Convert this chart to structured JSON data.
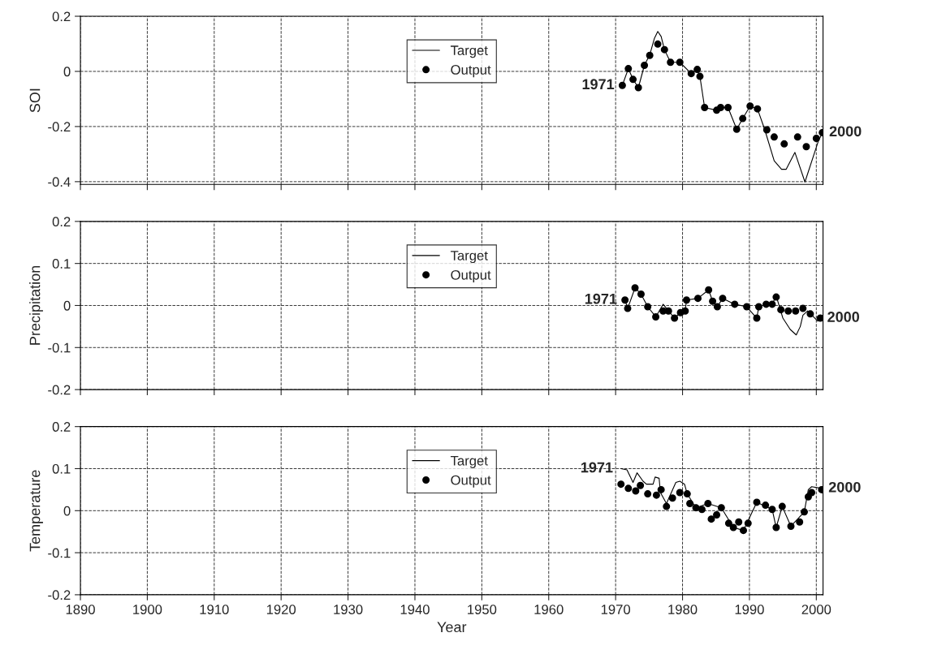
{
  "chart_data": [
    {
      "type": "line",
      "ylabel": "SOI",
      "xlim": [
        1890,
        2001
      ],
      "ylim": [
        -0.41,
        0.2
      ],
      "xticks": [
        1890,
        1900,
        1910,
        1920,
        1930,
        1940,
        1950,
        1960,
        1970,
        1980,
        1990,
        2000
      ],
      "yticks": [
        0.2,
        0,
        -0.2,
        -0.4
      ],
      "tick_labels": "y",
      "grid": true,
      "legend": "top",
      "annotations": [
        {
          "text": "1971",
          "x": 1971.0,
          "y": -0.051
        },
        {
          "text": "2000",
          "x": 2000.9,
          "y": -0.222
        }
      ],
      "series": [
        {
          "name": "Target",
          "color": "#000000",
          "line_style": "solid",
          "x": [
            1971.0,
            1971.9,
            1972.6,
            1973.4,
            1974.3,
            1975.1,
            1975.8,
            1976.3,
            1976.8,
            1977.3,
            1978.2,
            1979.6,
            1981.3,
            1982.2,
            1982.6,
            1983.3,
            1985.1,
            1985.7,
            1986.8,
            1988.1,
            1989.0,
            1990.1,
            1991.2,
            1992.3,
            1993.7,
            1994.8,
            1995.5,
            1996.8,
            1998.3,
            2000.3,
            2000.9
          ],
          "values": [
            -0.051,
            0.01,
            -0.029,
            -0.059,
            0.022,
            0.06,
            0.12,
            0.145,
            0.127,
            0.079,
            0.033,
            0.033,
            -0.008,
            0.007,
            -0.018,
            -0.131,
            -0.141,
            -0.131,
            -0.131,
            -0.21,
            -0.171,
            -0.126,
            -0.136,
            -0.212,
            -0.324,
            -0.355,
            -0.355,
            -0.294,
            -0.401,
            -0.253,
            -0.222
          ]
        },
        {
          "name": "Output",
          "type": "scatter",
          "marker": "circle",
          "color": "#000000",
          "x": [
            1971.0,
            1971.9,
            1972.6,
            1973.4,
            1974.3,
            1975.1,
            1976.3,
            1977.3,
            1978.2,
            1979.6,
            1981.3,
            1982.2,
            1982.6,
            1983.3,
            1985.1,
            1985.7,
            1986.8,
            1988.1,
            1989.0,
            1990.1,
            1991.2,
            1992.6,
            1993.7,
            1995.2,
            1997.2,
            1998.5,
            2000.0,
            2000.9
          ],
          "values": [
            -0.051,
            0.01,
            -0.029,
            -0.059,
            0.022,
            0.058,
            0.099,
            0.079,
            0.033,
            0.033,
            -0.008,
            0.007,
            -0.018,
            -0.131,
            -0.141,
            -0.131,
            -0.131,
            -0.21,
            -0.171,
            -0.126,
            -0.136,
            -0.212,
            -0.238,
            -0.263,
            -0.238,
            -0.273,
            -0.243,
            -0.222
          ]
        }
      ]
    },
    {
      "type": "line",
      "ylabel": "Precipitation",
      "xlim": [
        1890,
        2001
      ],
      "ylim": [
        -0.2,
        0.2
      ],
      "xticks": [
        1890,
        1900,
        1910,
        1920,
        1930,
        1940,
        1950,
        1960,
        1970,
        1980,
        1990,
        2000
      ],
      "yticks": [
        0.2,
        0.1,
        0,
        -0.1,
        -0.2
      ],
      "tick_labels": "y",
      "grid": true,
      "legend": "top",
      "annotations": [
        {
          "text": "1971",
          "x": 1971.4,
          "y": 0.013
        },
        {
          "text": "2000",
          "x": 2000.6,
          "y": -0.03
        }
      ],
      "series": [
        {
          "name": "Target",
          "color": "#000000",
          "line_style": "solid",
          "x": [
            1971.4,
            1971.8,
            1972.9,
            1973.8,
            1974.8,
            1976.0,
            1977.1,
            1977.9,
            1978.8,
            1979.7,
            1980.4,
            1980.6,
            1982.3,
            1983.9,
            1984.5,
            1985.2,
            1986.0,
            1987.8,
            1989.6,
            1991.1,
            1991.4,
            1992.5,
            1993.4,
            1994.0,
            1995.0,
            1996.1,
            1997.0,
            1997.6,
            1998.0,
            1998.7,
            2000.2,
            2000.6
          ],
          "values": [
            0.013,
            -0.007,
            0.042,
            0.027,
            -0.003,
            -0.027,
            0.003,
            -0.013,
            -0.03,
            -0.017,
            -0.013,
            0.013,
            0.017,
            0.037,
            0.01,
            -0.003,
            0.017,
            0.003,
            -0.003,
            -0.03,
            -0.003,
            0.003,
            0.003,
            0.023,
            -0.03,
            -0.057,
            -0.07,
            -0.05,
            -0.023,
            -0.013,
            -0.037,
            -0.03
          ]
        },
        {
          "name": "Output",
          "type": "scatter",
          "marker": "circle",
          "color": "#000000",
          "x": [
            1971.4,
            1971.8,
            1972.9,
            1973.8,
            1974.8,
            1976.0,
            1977.1,
            1977.9,
            1978.8,
            1979.7,
            1980.4,
            1980.6,
            1982.3,
            1983.9,
            1984.5,
            1985.2,
            1986.0,
            1987.8,
            1989.6,
            1991.1,
            1991.4,
            1992.5,
            1993.4,
            1994.0,
            1994.7,
            1995.8,
            1996.9,
            1998.0,
            1999.1,
            2000.6
          ],
          "values": [
            0.013,
            -0.007,
            0.042,
            0.027,
            -0.003,
            -0.027,
            -0.013,
            -0.013,
            -0.03,
            -0.017,
            -0.013,
            0.013,
            0.017,
            0.037,
            0.01,
            -0.003,
            0.017,
            0.003,
            -0.003,
            -0.03,
            -0.003,
            0.003,
            0.003,
            0.02,
            -0.01,
            -0.013,
            -0.013,
            -0.007,
            -0.02,
            -0.03
          ]
        }
      ]
    },
    {
      "type": "line",
      "ylabel": "Temperature",
      "xlabel": "Year",
      "xlim": [
        1890,
        2001
      ],
      "ylim": [
        -0.2,
        0.2
      ],
      "xticks": [
        1890,
        1900,
        1910,
        1920,
        1930,
        1940,
        1950,
        1960,
        1970,
        1980,
        1990,
        2000
      ],
      "yticks": [
        0.2,
        0.1,
        0,
        -0.1,
        -0.2
      ],
      "grid": true,
      "legend": "top",
      "annotations": [
        {
          "text": "1971",
          "x": 1970.8,
          "y": 0.1
        },
        {
          "text": "2000",
          "x": 2000.8,
          "y": 0.053
        }
      ],
      "series": [
        {
          "name": "Target",
          "color": "#000000",
          "line_style": "solid",
          "x": [
            1970.8,
            1971.7,
            1972.6,
            1973.2,
            1974.1,
            1974.6,
            1975.6,
            1975.9,
            1976.5,
            1976.7,
            1977.6,
            1979.0,
            1979.6,
            1980.3,
            1980.7,
            1982.0,
            1983.8,
            1985.8,
            1987.6,
            1989.1,
            1991.1,
            1993.4,
            1994.0,
            1994.9,
            1996.2,
            1998.2,
            1998.8,
            1999.3,
            2000.8
          ],
          "values": [
            0.1,
            0.097,
            0.067,
            0.09,
            0.07,
            0.063,
            0.063,
            0.08,
            0.077,
            0.043,
            0.017,
            0.067,
            0.07,
            0.063,
            0.04,
            0.007,
            0.017,
            0.007,
            -0.04,
            -0.047,
            0.02,
            0.003,
            -0.04,
            0.01,
            -0.037,
            -0.003,
            0.05,
            0.057,
            0.053
          ]
        },
        {
          "name": "Output",
          "type": "scatter",
          "marker": "circle",
          "color": "#000000",
          "x": [
            1970.8,
            1971.9,
            1973.0,
            1973.7,
            1974.8,
            1976.1,
            1976.8,
            1977.6,
            1978.5,
            1979.6,
            1980.7,
            1981.1,
            1982.0,
            1982.9,
            1983.8,
            1984.3,
            1985.1,
            1985.8,
            1986.9,
            1987.6,
            1988.4,
            1989.1,
            1989.8,
            1991.1,
            1992.4,
            1993.4,
            1994.0,
            1994.9,
            1996.2,
            1997.5,
            1998.2,
            1998.8,
            1999.3,
            2000.8
          ],
          "values": [
            0.063,
            0.053,
            0.047,
            0.06,
            0.04,
            0.037,
            0.05,
            0.01,
            0.03,
            0.043,
            0.04,
            0.017,
            0.007,
            0.003,
            0.017,
            -0.02,
            -0.01,
            0.007,
            -0.03,
            -0.04,
            -0.027,
            -0.047,
            -0.03,
            0.02,
            0.013,
            0.003,
            -0.04,
            0.01,
            -0.037,
            -0.027,
            -0.003,
            0.033,
            0.043,
            0.05
          ]
        }
      ]
    }
  ]
}
